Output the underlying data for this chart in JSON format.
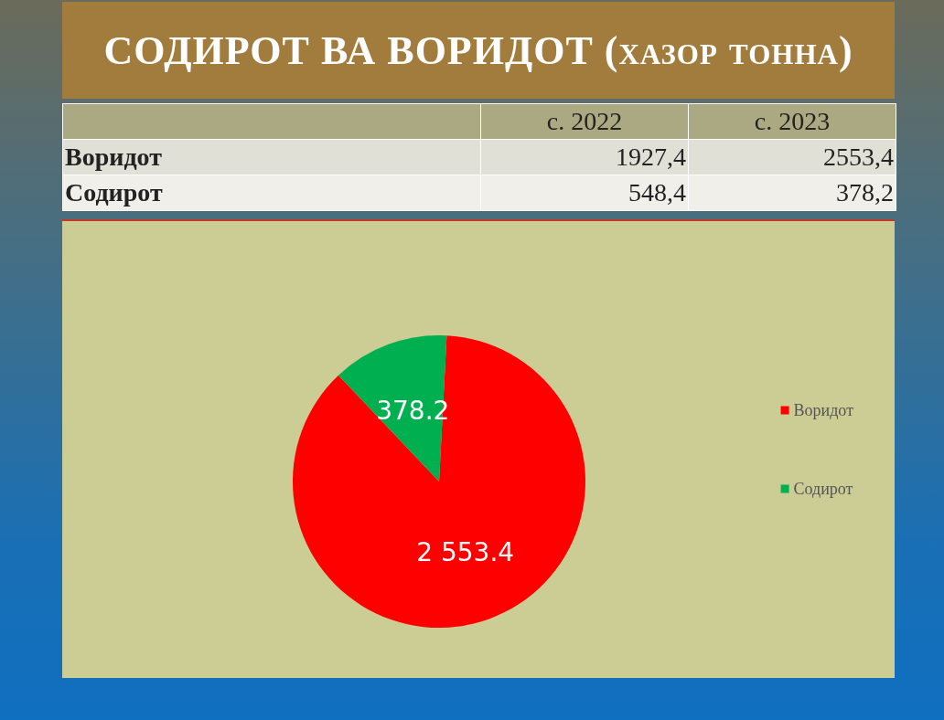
{
  "chart_data": [
    {
      "type": "other",
      "title": "СОДИРОТ ВА ВОРИДОТ (хазор тонна)",
      "categories": [
        "с. 2022",
        "с. 2023"
      ],
      "series": [
        {
          "name": "Воридот",
          "values": [
            1927.4,
            2553.4
          ],
          "value_labels": [
            "1927,4",
            "2553,4"
          ]
        },
        {
          "name": "Содирот",
          "values": [
            548.4,
            378.2
          ],
          "value_labels": [
            "548,4",
            "378,2"
          ]
        }
      ]
    },
    {
      "type": "pie",
      "categories": [
        "Воридот",
        "Содирот"
      ],
      "values": [
        2553.4,
        378.2
      ],
      "colors": [
        "#ff0000",
        "#00b050"
      ],
      "value_labels": [
        "2 553.4",
        "378.2"
      ],
      "legend": "right"
    }
  ]
}
